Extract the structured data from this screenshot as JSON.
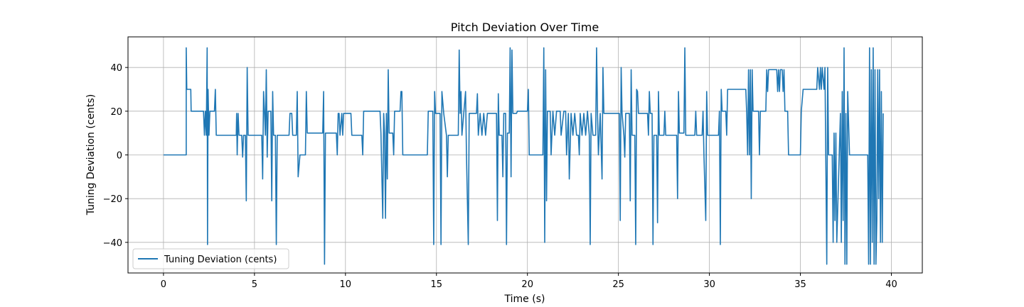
{
  "chart_data": {
    "type": "line",
    "title": "Pitch Deviation Over Time",
    "xlabel": "Time (s)",
    "ylabel": "Tuning Deviation (cents)",
    "xlim": [
      -1.95,
      41.7
    ],
    "ylim": [
      -54,
      54
    ],
    "xticks": [
      0,
      5,
      10,
      15,
      20,
      25,
      30,
      35,
      40
    ],
    "yticks": [
      -40,
      -20,
      0,
      20,
      40
    ],
    "grid": true,
    "legend_position": "lower-left",
    "color": "#1f77b4",
    "series": [
      {
        "name": "Tuning Deviation (cents)",
        "points": [
          [
            0,
            0
          ],
          [
            1.25,
            0
          ],
          [
            1.25,
            49
          ],
          [
            1.28,
            30
          ],
          [
            1.5,
            30
          ],
          [
            1.52,
            20
          ],
          [
            2.2,
            20
          ],
          [
            2.25,
            9
          ],
          [
            2.3,
            20
          ],
          [
            2.35,
            9
          ],
          [
            2.4,
            49
          ],
          [
            2.42,
            -41
          ],
          [
            2.45,
            30
          ],
          [
            2.5,
            9
          ],
          [
            2.55,
            20
          ],
          [
            2.8,
            20
          ],
          [
            2.85,
            30
          ],
          [
            2.9,
            9
          ],
          [
            4.0,
            9
          ],
          [
            4.02,
            19
          ],
          [
            4.05,
            0
          ],
          [
            4.1,
            19
          ],
          [
            4.15,
            9
          ],
          [
            4.3,
            9
          ],
          [
            4.35,
            -1
          ],
          [
            4.4,
            9
          ],
          [
            4.5,
            9
          ],
          [
            4.55,
            -21
          ],
          [
            4.6,
            40
          ],
          [
            4.65,
            9
          ],
          [
            5.4,
            9
          ],
          [
            5.45,
            -11
          ],
          [
            5.5,
            29
          ],
          [
            5.55,
            20
          ],
          [
            5.6,
            9
          ],
          [
            5.65,
            39
          ],
          [
            5.7,
            -1
          ],
          [
            5.75,
            20
          ],
          [
            5.9,
            20
          ],
          [
            5.95,
            -21
          ],
          [
            6.0,
            29
          ],
          [
            6.05,
            9
          ],
          [
            6.15,
            9
          ],
          [
            6.2,
            -41
          ],
          [
            6.25,
            9
          ],
          [
            6.9,
            9
          ],
          [
            6.95,
            19
          ],
          [
            7.05,
            19
          ],
          [
            7.1,
            9
          ],
          [
            7.3,
            9
          ],
          [
            7.35,
            29
          ],
          [
            7.4,
            -10
          ],
          [
            7.5,
            0
          ],
          [
            7.8,
            0
          ],
          [
            7.85,
            29
          ],
          [
            7.9,
            10
          ],
          [
            8.75,
            10
          ],
          [
            8.8,
            29
          ],
          [
            8.85,
            -50
          ],
          [
            8.9,
            10
          ],
          [
            9.5,
            10
          ],
          [
            9.55,
            0
          ],
          [
            9.6,
            19
          ],
          [
            9.65,
            19
          ],
          [
            9.7,
            9
          ],
          [
            9.8,
            19
          ],
          [
            9.85,
            9
          ],
          [
            9.9,
            19
          ],
          [
            10.3,
            19
          ],
          [
            10.35,
            9
          ],
          [
            10.9,
            9
          ],
          [
            10.95,
            0
          ],
          [
            11.0,
            20
          ],
          [
            11.9,
            20
          ],
          [
            11.95,
            10
          ],
          [
            12.05,
            -29
          ],
          [
            12.1,
            19
          ],
          [
            12.15,
            10
          ],
          [
            12.2,
            -29
          ],
          [
            12.25,
            19
          ],
          [
            12.3,
            -11
          ],
          [
            12.35,
            39
          ],
          [
            12.4,
            10
          ],
          [
            12.6,
            10
          ],
          [
            12.65,
            0
          ],
          [
            12.7,
            20
          ],
          [
            13.0,
            20
          ],
          [
            13.05,
            29
          ],
          [
            13.1,
            29
          ],
          [
            13.15,
            0
          ],
          [
            14.5,
            0
          ],
          [
            14.55,
            20
          ],
          [
            14.8,
            20
          ],
          [
            14.85,
            -41
          ],
          [
            14.9,
            29
          ],
          [
            14.95,
            19
          ],
          [
            15.2,
            19
          ],
          [
            15.25,
            -41
          ],
          [
            15.3,
            29
          ],
          [
            15.4,
            19
          ],
          [
            15.55,
            9
          ],
          [
            15.6,
            -10
          ],
          [
            15.65,
            9
          ],
          [
            16.2,
            9
          ],
          [
            16.25,
            48
          ],
          [
            16.3,
            19
          ],
          [
            16.35,
            29
          ],
          [
            16.4,
            9
          ],
          [
            16.6,
            29
          ],
          [
            16.65,
            0
          ],
          [
            16.75,
            -41
          ],
          [
            16.8,
            19
          ],
          [
            17.2,
            19
          ],
          [
            17.25,
            28
          ],
          [
            17.3,
            9
          ],
          [
            17.4,
            19
          ],
          [
            17.5,
            9
          ],
          [
            17.6,
            19
          ],
          [
            17.7,
            9
          ],
          [
            17.8,
            19
          ],
          [
            18.3,
            19
          ],
          [
            18.35,
            -30
          ],
          [
            18.4,
            28
          ],
          [
            18.45,
            9
          ],
          [
            18.6,
            9
          ],
          [
            18.65,
            -10
          ],
          [
            18.7,
            19
          ],
          [
            18.8,
            19
          ],
          [
            18.85,
            -41
          ],
          [
            18.9,
            10
          ],
          [
            19.0,
            10
          ],
          [
            19.05,
            49
          ],
          [
            19.1,
            -10
          ],
          [
            19.15,
            48
          ],
          [
            19.2,
            19
          ],
          [
            19.4,
            19
          ],
          [
            19.45,
            20
          ],
          [
            20.0,
            20
          ],
          [
            20.05,
            30
          ],
          [
            20.1,
            0
          ],
          [
            20.85,
            0
          ],
          [
            20.9,
            49
          ],
          [
            20.95,
            -40
          ],
          [
            21.0,
            39
          ],
          [
            21.05,
            -21
          ],
          [
            21.1,
            20
          ],
          [
            21.25,
            20
          ],
          [
            21.3,
            0
          ],
          [
            21.4,
            20
          ],
          [
            21.5,
            9
          ],
          [
            21.6,
            20
          ],
          [
            21.8,
            20
          ],
          [
            21.85,
            9
          ],
          [
            22.0,
            20
          ],
          [
            22.1,
            20
          ],
          [
            22.15,
            0
          ],
          [
            22.25,
            19
          ],
          [
            22.3,
            -11
          ],
          [
            22.4,
            19
          ],
          [
            22.5,
            9
          ],
          [
            22.6,
            19
          ],
          [
            22.7,
            9
          ],
          [
            22.8,
            9
          ],
          [
            22.85,
            0
          ],
          [
            22.9,
            19
          ],
          [
            23.0,
            9
          ],
          [
            23.1,
            19
          ],
          [
            23.2,
            9
          ],
          [
            23.3,
            20
          ],
          [
            23.4,
            9
          ],
          [
            23.45,
            -41
          ],
          [
            23.5,
            19
          ],
          [
            23.6,
            9
          ],
          [
            23.75,
            9
          ],
          [
            23.8,
            49
          ],
          [
            23.85,
            20
          ],
          [
            23.9,
            0
          ],
          [
            24.0,
            19
          ],
          [
            24.1,
            -11
          ],
          [
            24.15,
            40
          ],
          [
            24.2,
            19
          ],
          [
            25.05,
            19
          ],
          [
            25.1,
            -30
          ],
          [
            25.15,
            40
          ],
          [
            25.2,
            19
          ],
          [
            25.3,
            9
          ],
          [
            25.35,
            -1
          ],
          [
            25.4,
            19
          ],
          [
            25.6,
            19
          ],
          [
            25.65,
            -21
          ],
          [
            25.7,
            39
          ],
          [
            25.75,
            9
          ],
          [
            25.9,
            9
          ],
          [
            25.95,
            -41
          ],
          [
            26.0,
            30
          ],
          [
            26.05,
            29
          ],
          [
            26.1,
            19
          ],
          [
            26.6,
            19
          ],
          [
            26.65,
            9
          ],
          [
            26.7,
            29
          ],
          [
            26.75,
            19
          ],
          [
            26.85,
            19
          ],
          [
            26.9,
            -41
          ],
          [
            26.95,
            9
          ],
          [
            27.1,
            9
          ],
          [
            27.15,
            -31
          ],
          [
            27.2,
            29
          ],
          [
            27.25,
            9
          ],
          [
            27.5,
            9
          ],
          [
            27.55,
            20
          ],
          [
            27.6,
            9
          ],
          [
            28.2,
            9
          ],
          [
            28.25,
            -20
          ],
          [
            28.3,
            29
          ],
          [
            28.35,
            10
          ],
          [
            28.6,
            10
          ],
          [
            28.65,
            49
          ],
          [
            28.7,
            9
          ],
          [
            29.2,
            9
          ],
          [
            29.25,
            20
          ],
          [
            29.3,
            9
          ],
          [
            29.6,
            9
          ],
          [
            29.65,
            20
          ],
          [
            29.7,
            0
          ],
          [
            29.8,
            -30
          ],
          [
            29.85,
            29
          ],
          [
            29.9,
            9
          ],
          [
            30.5,
            9
          ],
          [
            30.55,
            20
          ],
          [
            30.6,
            -41
          ],
          [
            30.65,
            30
          ],
          [
            30.7,
            20
          ],
          [
            30.9,
            20
          ],
          [
            30.95,
            9
          ],
          [
            31.0,
            30
          ],
          [
            32.0,
            30
          ],
          [
            32.05,
            19
          ],
          [
            32.1,
            0
          ],
          [
            32.15,
            39
          ],
          [
            32.2,
            0
          ],
          [
            32.25,
            39
          ],
          [
            32.3,
            -20
          ],
          [
            32.35,
            39
          ],
          [
            32.4,
            20
          ],
          [
            32.7,
            20
          ],
          [
            32.75,
            0
          ],
          [
            32.8,
            20
          ],
          [
            33.1,
            20
          ],
          [
            33.15,
            39
          ],
          [
            33.2,
            29
          ],
          [
            33.25,
            39
          ],
          [
            33.7,
            39
          ],
          [
            33.75,
            29
          ],
          [
            33.8,
            39
          ],
          [
            33.85,
            29
          ],
          [
            33.9,
            39
          ],
          [
            34.0,
            39
          ],
          [
            34.05,
            29
          ],
          [
            34.1,
            39
          ],
          [
            34.15,
            20
          ],
          [
            34.3,
            20
          ],
          [
            34.35,
            0
          ],
          [
            35.0,
            0
          ],
          [
            35.05,
            20
          ],
          [
            35.15,
            30
          ],
          [
            35.9,
            30
          ],
          [
            35.95,
            40
          ],
          [
            36.05,
            30
          ],
          [
            36.1,
            40
          ],
          [
            36.15,
            30
          ],
          [
            36.2,
            40
          ],
          [
            36.3,
            30
          ],
          [
            36.35,
            40
          ],
          [
            36.45,
            -50
          ],
          [
            36.5,
            40
          ],
          [
            36.55,
            0
          ],
          [
            36.75,
            0
          ],
          [
            36.8,
            -40
          ],
          [
            36.85,
            10
          ],
          [
            36.9,
            -30
          ],
          [
            36.95,
            10
          ],
          [
            37.0,
            -40
          ],
          [
            37.1,
            -10
          ],
          [
            37.2,
            19
          ],
          [
            37.25,
            -40
          ],
          [
            37.3,
            29
          ],
          [
            37.35,
            -30
          ],
          [
            37.4,
            49
          ],
          [
            37.45,
            -50
          ],
          [
            37.5,
            19
          ],
          [
            37.55,
            -50
          ],
          [
            37.6,
            29
          ],
          [
            37.7,
            0
          ],
          [
            38.7,
            0
          ],
          [
            38.75,
            -50
          ],
          [
            38.8,
            49
          ],
          [
            38.85,
            -50
          ],
          [
            38.9,
            39
          ],
          [
            38.95,
            -40
          ],
          [
            39.0,
            49
          ],
          [
            39.05,
            -50
          ],
          [
            39.1,
            39
          ],
          [
            39.15,
            -50
          ],
          [
            39.2,
            -30
          ],
          [
            39.25,
            39
          ],
          [
            39.3,
            -20
          ],
          [
            39.35,
            39
          ],
          [
            39.4,
            -40
          ],
          [
            39.45,
            29
          ],
          [
            39.5,
            -40
          ],
          [
            39.55,
            19
          ]
        ]
      }
    ]
  }
}
